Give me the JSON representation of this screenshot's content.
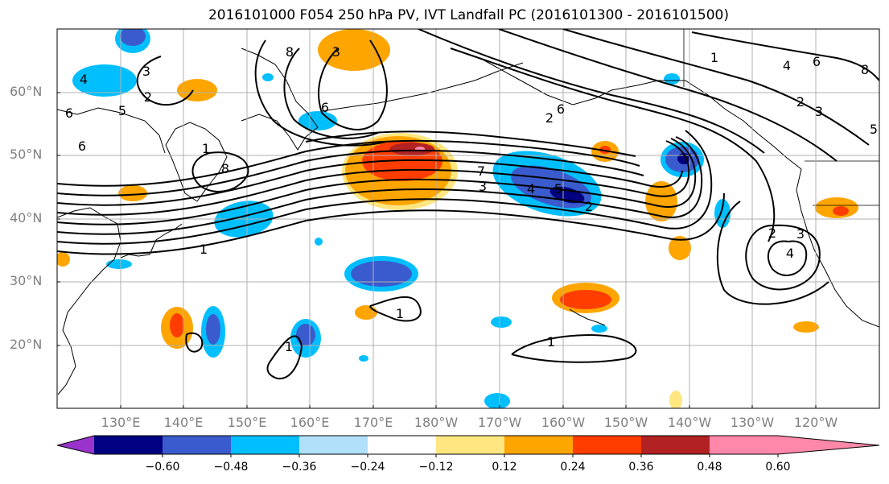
{
  "title": "2016101000 F054 250 hPa PV, IVT Landfall PC (2016101300 - 2016101500)",
  "lat_labels": [
    "60°N",
    "50°N",
    "40°N",
    "30°N",
    "20°N"
  ],
  "lon_labels": [
    "130°E",
    "140°E",
    "150°E",
    "160°E",
    "170°E",
    "180°W",
    "170°W",
    "160°W",
    "150°W",
    "140°W",
    "130°W",
    "120°W"
  ],
  "colorbar": {
    "colors": [
      "#9933cc",
      "#000080",
      "#3a5bcd",
      "#00bfff",
      "#b0e0fa",
      "#ffffff",
      "#ffe680",
      "#ffa500",
      "#ff3d00",
      "#b22222",
      "#ff88aa"
    ],
    "ticks": [
      "−0.60",
      "−0.48",
      "−0.36",
      "−0.24",
      "−0.12",
      "0.12",
      "0.24",
      "0.36",
      "0.48",
      "0.60"
    ]
  },
  "contour_labels": [
    "3",
    "6",
    "4",
    "5",
    "2",
    "6",
    "8",
    "8",
    "6",
    "1",
    "4",
    "6",
    "8",
    "3",
    "2",
    "1",
    "2",
    "3",
    "5",
    "7",
    "3",
    "4",
    "5",
    "2",
    "6",
    "1",
    "1",
    "1",
    "1",
    "2",
    "3",
    "4"
  ],
  "map_data": {
    "type": "contour-map",
    "variable": "250 hPa PV, IVT Landfall PC",
    "lat_range": [
      10,
      70
    ],
    "lon_range": [
      120,
      250
    ],
    "shading_levels": [
      -0.6,
      -0.48,
      -0.36,
      -0.24,
      -0.12,
      0.12,
      0.24,
      0.36,
      0.48,
      0.6
    ]
  }
}
